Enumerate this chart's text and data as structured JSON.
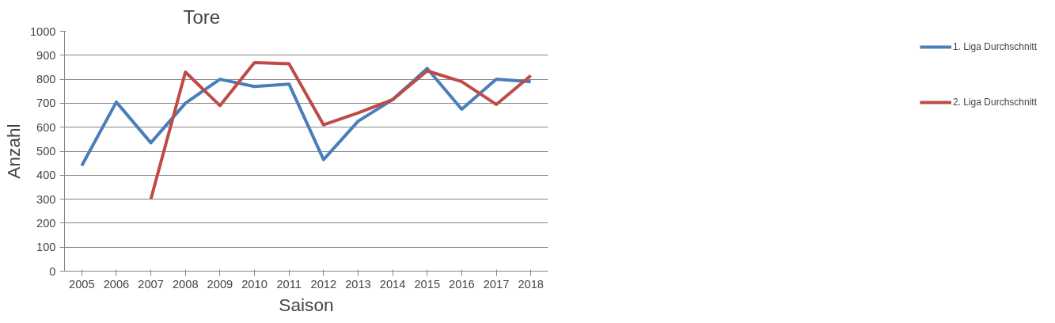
{
  "chart_data": {
    "type": "line",
    "title": "Tore",
    "xlabel": "Saison",
    "ylabel": "Anzahl",
    "categories": [
      "2005",
      "2006",
      "2007",
      "2008",
      "2009",
      "2010",
      "2011",
      "2012",
      "2013",
      "2014",
      "2015",
      "2016",
      "2017",
      "2018"
    ],
    "series": [
      {
        "name": "1. Liga Durchschnitt",
        "color": "#4a7ebb",
        "values": [
          440,
          705,
          535,
          700,
          800,
          770,
          780,
          465,
          625,
          715,
          845,
          675,
          800,
          790
        ]
      },
      {
        "name": "2. Liga Durchschnitt",
        "color": "#be4b48",
        "values": [
          null,
          null,
          300,
          830,
          690,
          870,
          865,
          610,
          660,
          715,
          835,
          790,
          695,
          815
        ]
      }
    ],
    "ylim": [
      0,
      1000
    ],
    "yticks": [
      0,
      100,
      200,
      300,
      400,
      500,
      600,
      700,
      800,
      900,
      1000
    ],
    "grid": "y",
    "legend": "right"
  }
}
